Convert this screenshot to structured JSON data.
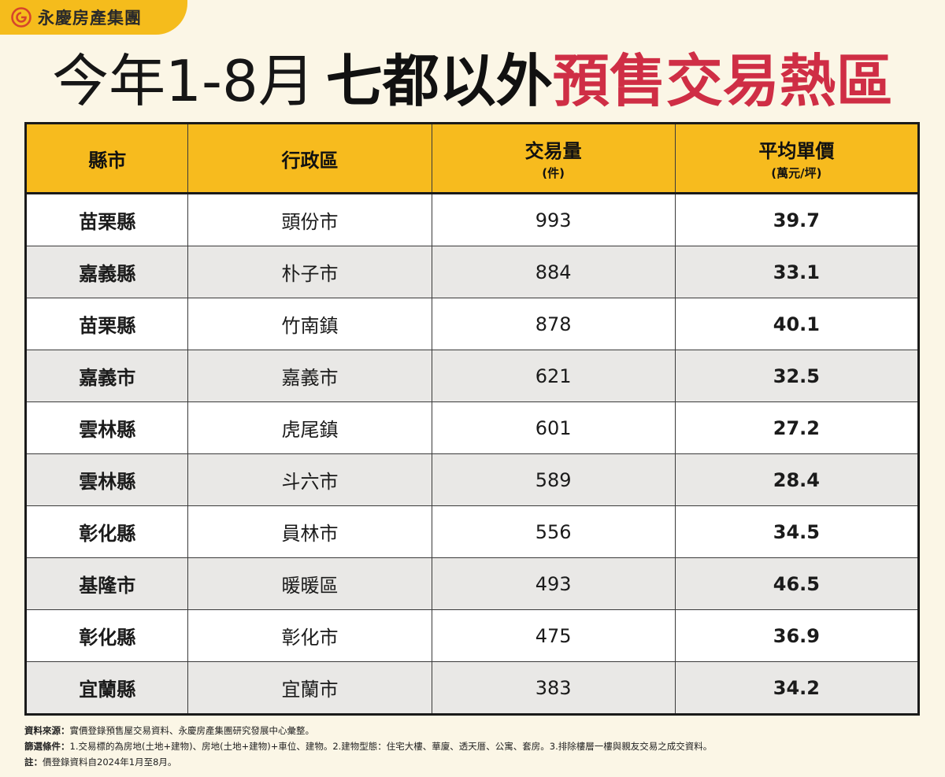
{
  "brand": {
    "name": "永慶房產集團",
    "accent": "#f5bc1c",
    "logo_color": "#d6452b"
  },
  "headline": {
    "light": "今年1-8月",
    "bold": "七都以外",
    "red": "預售交易熱區"
  },
  "table": {
    "headers": [
      {
        "main": "縣市",
        "sub": ""
      },
      {
        "main": "行政區",
        "sub": ""
      },
      {
        "main": "交易量",
        "sub": "(件)"
      },
      {
        "main": "平均單價",
        "sub": "(萬元/坪)"
      }
    ],
    "rows": [
      {
        "county": "苗栗縣",
        "district": "頭份市",
        "volume": "993",
        "price": "39.7"
      },
      {
        "county": "嘉義縣",
        "district": "朴子市",
        "volume": "884",
        "price": "33.1"
      },
      {
        "county": "苗栗縣",
        "district": "竹南鎮",
        "volume": "878",
        "price": "40.1"
      },
      {
        "county": "嘉義市",
        "district": "嘉義市",
        "volume": "621",
        "price": "32.5"
      },
      {
        "county": "雲林縣",
        "district": "虎尾鎮",
        "volume": "601",
        "price": "27.2"
      },
      {
        "county": "雲林縣",
        "district": "斗六市",
        "volume": "589",
        "price": "28.4"
      },
      {
        "county": "彰化縣",
        "district": "員林市",
        "volume": "556",
        "price": "34.5"
      },
      {
        "county": "基隆市",
        "district": "暖暖區",
        "volume": "493",
        "price": "46.5"
      },
      {
        "county": "彰化縣",
        "district": "彰化市",
        "volume": "475",
        "price": "36.9"
      },
      {
        "county": "宜蘭縣",
        "district": "宜蘭市",
        "volume": "383",
        "price": "34.2"
      }
    ]
  },
  "notes": [
    {
      "label": "資料來源：",
      "text": "實價登錄預售屋交易資料、永慶房產集團研究發展中心彙整。"
    },
    {
      "label": "篩選條件：",
      "text": "1.交易標的為房地(土地+建物)、房地(土地+建物)+車位、建物。2.建物型態：住宅大樓、華廈、透天厝、公寓、套房。3.排除樓層一樓與親友交易之成交資料。"
    },
    {
      "label": "註：",
      "text": "價登錄資料自2024年1月至8月。"
    }
  ]
}
